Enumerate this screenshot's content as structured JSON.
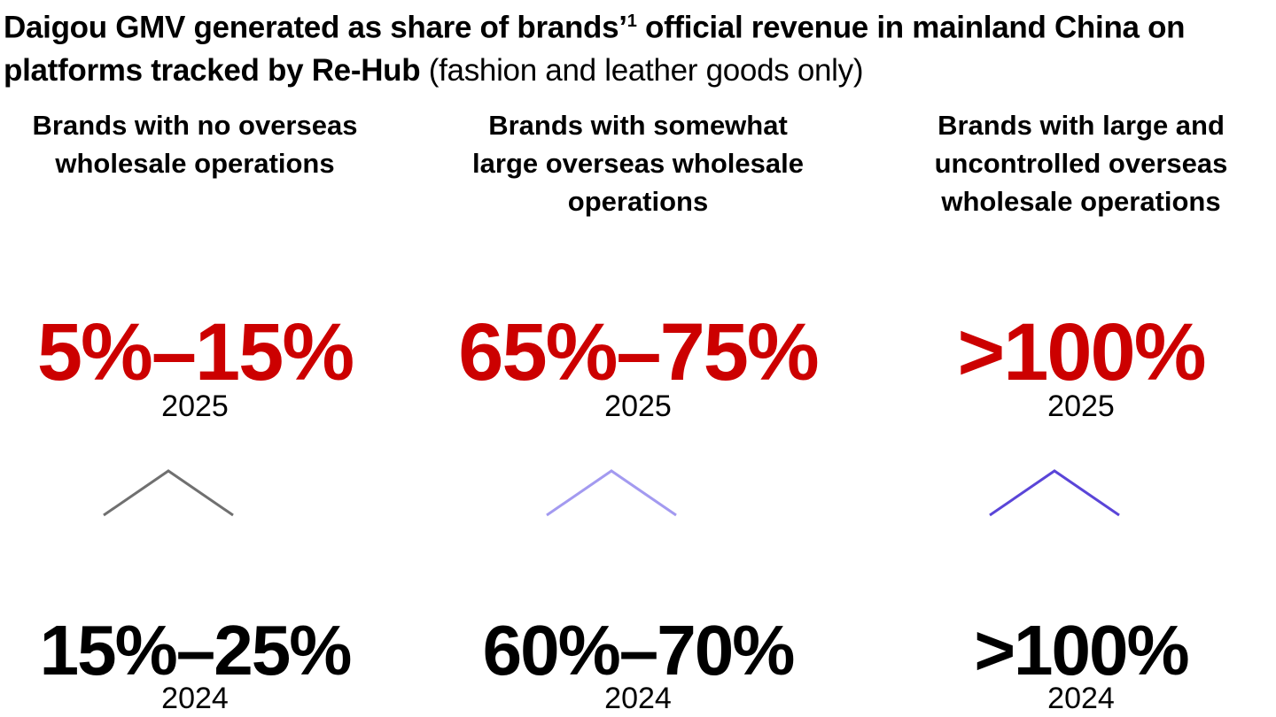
{
  "title": {
    "bold_part": "Daigou GMV generated as share of brands’",
    "superscript": "1",
    "bold_part2": " official revenue in mainland China on platforms tracked by Re-Hub",
    "light_part": " (fashion and leather goods only)"
  },
  "chart_data": {
    "type": "table",
    "title": "Daigou GMV generated as share of brands’1 official revenue in mainland China on platforms tracked by Re-Hub (fashion and leather goods only)",
    "columns": [
      {
        "header": "Brands with no overseas wholesale operations",
        "value_2025": "5%–15%",
        "year_2025": "2025",
        "value_2024": "15%–25%",
        "year_2024": "2024",
        "trend": "up",
        "color": "#707070"
      },
      {
        "header": "Brands with somewhat large overseas wholesale operations",
        "value_2025": "65%–75%",
        "year_2025": "2025",
        "value_2024": "60%–70%",
        "year_2024": "2024",
        "trend": "up",
        "color": "#a39af0"
      },
      {
        "header": "Brands with large and uncontrolled overseas wholesale operations",
        "value_2025": ">100%",
        "year_2025": "2025",
        "value_2024": ">100%",
        "year_2024": "2024",
        "trend": "up",
        "color": "#5a45d8"
      }
    ],
    "highlight_color": "#cc0000"
  }
}
